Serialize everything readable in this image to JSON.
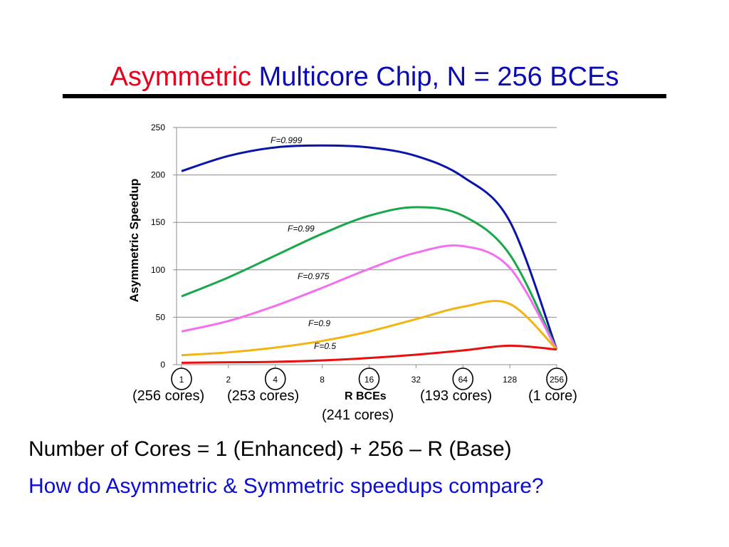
{
  "title": {
    "part1": "Asymmetric",
    "part1_color": "#e8001c",
    "part2": " Multicore Chip, N = 256 BCEs",
    "part2_color": "#0b0bb4"
  },
  "chart_data": {
    "type": "line",
    "x": [
      1,
      2,
      4,
      8,
      16,
      32,
      64,
      128,
      256
    ],
    "x_tick_labels": [
      "1",
      "2",
      "4",
      "8",
      "16",
      "32",
      "64",
      "128",
      "256"
    ],
    "x_scale": "log2",
    "xlabel": "R BCEs",
    "ylabel": "Asymmetric Speedup",
    "ylim": [
      0,
      250
    ],
    "y_ticks": [
      0,
      50,
      100,
      150,
      200,
      250
    ],
    "grid": true,
    "series": [
      {
        "name": "F=0.999",
        "color": "#0a14a8",
        "values": [
          204,
          220,
          229,
          231,
          229,
          220,
          198,
          151,
          16
        ]
      },
      {
        "name": "F=0.99",
        "color": "#18a84a",
        "values": [
          72,
          92,
          115,
          138,
          157,
          166,
          157,
          116,
          16
        ]
      },
      {
        "name": "F=0.975",
        "color": "#f36ff0",
        "values": [
          35,
          46,
          62,
          81,
          101,
          118,
          125,
          102,
          16
        ]
      },
      {
        "name": "F=0.9",
        "color": "#f3b411",
        "values": [
          10,
          13,
          18,
          25,
          35,
          48,
          61,
          64,
          16
        ]
      },
      {
        "name": "F=0.5",
        "color": "#e80f0f",
        "values": [
          2,
          2.5,
          3,
          4.5,
          7,
          10.5,
          15,
          20,
          16
        ]
      }
    ],
    "circled_ticks": [
      "1",
      "4",
      "16",
      "64",
      "256"
    ],
    "annotations": [
      {
        "id": "r1",
        "text": "(256 cores)"
      },
      {
        "id": "r4",
        "text": "(253 cores)"
      },
      {
        "id": "r16",
        "text": "(241 cores)"
      },
      {
        "id": "r64",
        "text": "(193 cores)"
      },
      {
        "id": "r256",
        "text": "(1 core)"
      }
    ]
  },
  "bottom": {
    "line1": "Number of Cores = 1 (Enhanced) + 256 – R (Base)",
    "line2": "How do Asymmetric & Symmetric speedups compare?",
    "line2_color": "#0b0bd8"
  }
}
